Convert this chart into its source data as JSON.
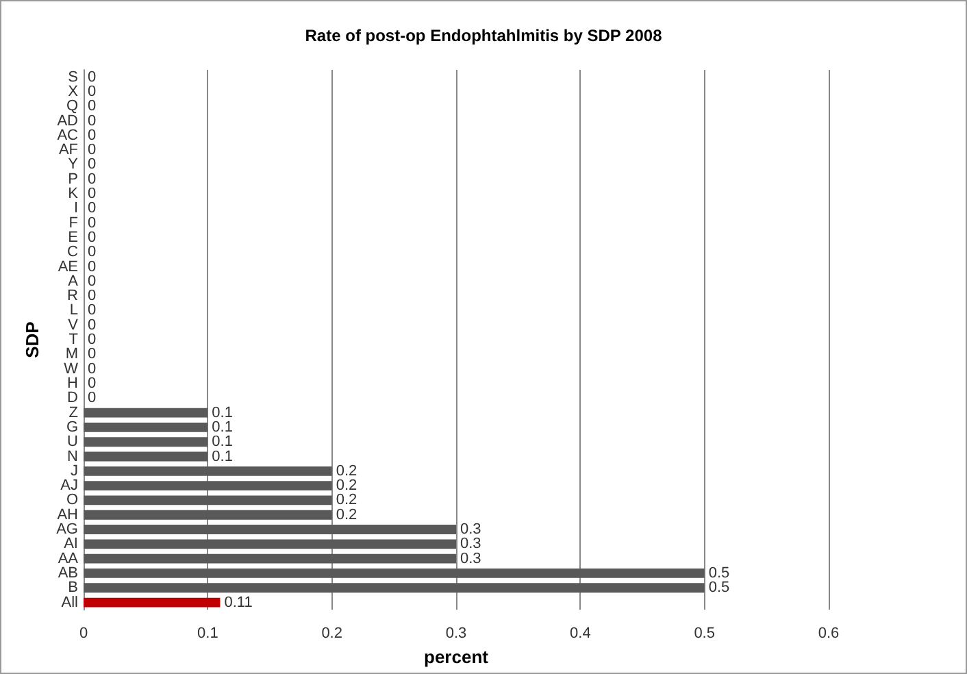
{
  "chart_data": {
    "type": "bar",
    "orientation": "horizontal",
    "title": "Rate of post-op Endophtahlmitis by SDP 2008",
    "xlabel": "percent",
    "ylabel": "SDP",
    "categories": [
      "S",
      "X",
      "Q",
      "AD",
      "AC",
      "AF",
      "Y",
      "P",
      "K",
      "I",
      "F",
      "E",
      "C",
      "AE",
      "A",
      "R",
      "L",
      "V",
      "T",
      "M",
      "W",
      "H",
      "D",
      "Z",
      "G",
      "U",
      "N",
      "J",
      "AJ",
      "O",
      "AH",
      "AG",
      "AI",
      "AA",
      "AB",
      "B",
      "All"
    ],
    "values": [
      0,
      0,
      0,
      0,
      0,
      0,
      0,
      0,
      0,
      0,
      0,
      0,
      0,
      0,
      0,
      0,
      0,
      0,
      0,
      0,
      0,
      0,
      0,
      0.1,
      0.1,
      0.1,
      0.1,
      0.2,
      0.2,
      0.2,
      0.2,
      0.3,
      0.3,
      0.3,
      0.5,
      0.5,
      0.11
    ],
    "colors": [
      "#595959",
      "#595959",
      "#595959",
      "#595959",
      "#595959",
      "#595959",
      "#595959",
      "#595959",
      "#595959",
      "#595959",
      "#595959",
      "#595959",
      "#595959",
      "#595959",
      "#595959",
      "#595959",
      "#595959",
      "#595959",
      "#595959",
      "#595959",
      "#595959",
      "#595959",
      "#595959",
      "#595959",
      "#595959",
      "#595959",
      "#595959",
      "#595959",
      "#595959",
      "#595959",
      "#595959",
      "#595959",
      "#595959",
      "#595959",
      "#595959",
      "#595959",
      "#c00000"
    ],
    "xlim": [
      0,
      0.6
    ],
    "xticks": [
      0,
      0.1,
      0.2,
      0.3,
      0.4,
      0.5,
      0.6
    ],
    "grid": "x",
    "data_labels": true
  }
}
